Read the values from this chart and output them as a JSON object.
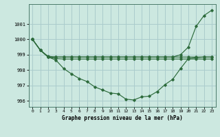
{
  "bg_color": "#cce8e0",
  "grid_color": "#aacccc",
  "line_color": "#2d6b3c",
  "xlabel": "Graphe pression niveau de la mer (hPa)",
  "ylim": [
    995.6,
    1002.3
  ],
  "xlim": [
    -0.5,
    23.5
  ],
  "yticks": [
    996,
    997,
    998,
    999,
    1000,
    1001
  ],
  "xticks": [
    0,
    1,
    2,
    3,
    4,
    5,
    6,
    7,
    8,
    9,
    10,
    11,
    12,
    13,
    14,
    15,
    16,
    17,
    18,
    19,
    20,
    21,
    22,
    23
  ],
  "line_flat": [
    1000.0,
    999.3,
    998.9,
    998.85,
    998.85,
    998.85,
    998.85,
    998.85,
    998.85,
    998.85,
    998.85,
    998.85,
    998.85,
    998.85,
    998.85,
    998.85,
    998.85,
    998.85,
    998.85,
    998.85,
    998.85,
    998.85,
    998.85,
    998.85
  ],
  "line_flat2": [
    1000.0,
    999.3,
    998.85,
    998.75,
    998.72,
    998.72,
    998.72,
    998.72,
    998.72,
    998.72,
    998.72,
    998.72,
    998.72,
    998.72,
    998.72,
    998.72,
    998.72,
    998.72,
    998.72,
    998.72,
    998.72,
    998.72,
    998.72,
    998.72
  ],
  "line_dip": [
    1000.0,
    999.3,
    998.85,
    998.65,
    998.1,
    997.75,
    997.45,
    997.25,
    996.9,
    996.7,
    996.5,
    996.45,
    996.1,
    996.05,
    996.25,
    996.3,
    996.6,
    997.05,
    997.4,
    998.1,
    998.75,
    998.8,
    998.85,
    998.85
  ],
  "line_rise": [
    1000.0,
    999.3,
    998.85,
    998.85,
    998.85,
    998.85,
    998.85,
    998.85,
    998.85,
    998.85,
    998.85,
    998.85,
    998.85,
    998.85,
    998.85,
    998.85,
    998.85,
    998.85,
    998.85,
    999.0,
    999.5,
    1000.85,
    1001.55,
    1001.9
  ]
}
